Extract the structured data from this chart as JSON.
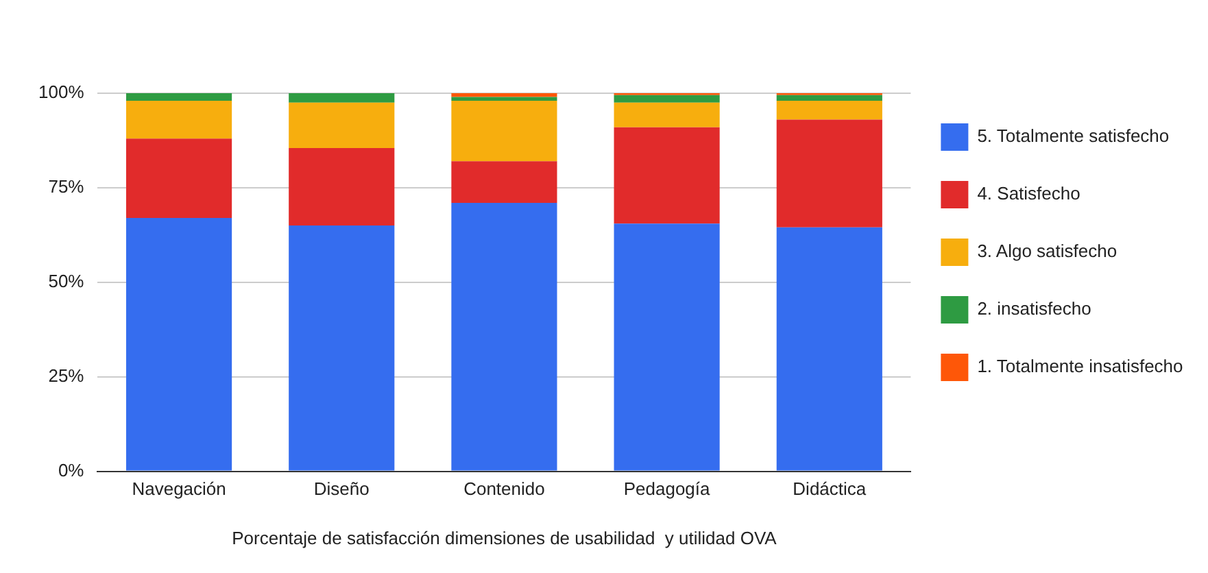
{
  "chart_data": {
    "type": "bar",
    "stacked": true,
    "xlabel": "Porcentaje de satisfacción dimensiones de usabilidad  y utilidad OVA",
    "categories": [
      "Navegación",
      "Diseño",
      "Contenido",
      "Pedagogía",
      "Didáctica"
    ],
    "series": [
      {
        "name": "5. Totalmente satisfecho",
        "color": "#356def",
        "values": [
          67,
          65,
          71,
          65.5,
          64.5
        ]
      },
      {
        "name": "4. Satisfecho",
        "color": "#e12b2b",
        "values": [
          21,
          20.5,
          11,
          25.5,
          28.5
        ]
      },
      {
        "name": "3. Algo satisfecho",
        "color": "#f7ae0e",
        "values": [
          10,
          12,
          16,
          6.5,
          5
        ]
      },
      {
        "name": "2. insatisfecho",
        "color": "#2e9b42",
        "values": [
          2,
          2.5,
          1,
          2,
          1.5
        ]
      },
      {
        "name": "1. Totalmente insatisfecho",
        "color": "#fe5708",
        "values": [
          0,
          0,
          1,
          0.5,
          0.5
        ]
      }
    ],
    "ylim": [
      0,
      100
    ],
    "yticks": [
      {
        "value": 0,
        "label": "0%"
      },
      {
        "value": 25,
        "label": "25%"
      },
      {
        "value": 50,
        "label": "50%"
      },
      {
        "value": 75,
        "label": "75%"
      },
      {
        "value": 100,
        "label": "100%"
      }
    ],
    "grid": "y",
    "legend": "right"
  }
}
